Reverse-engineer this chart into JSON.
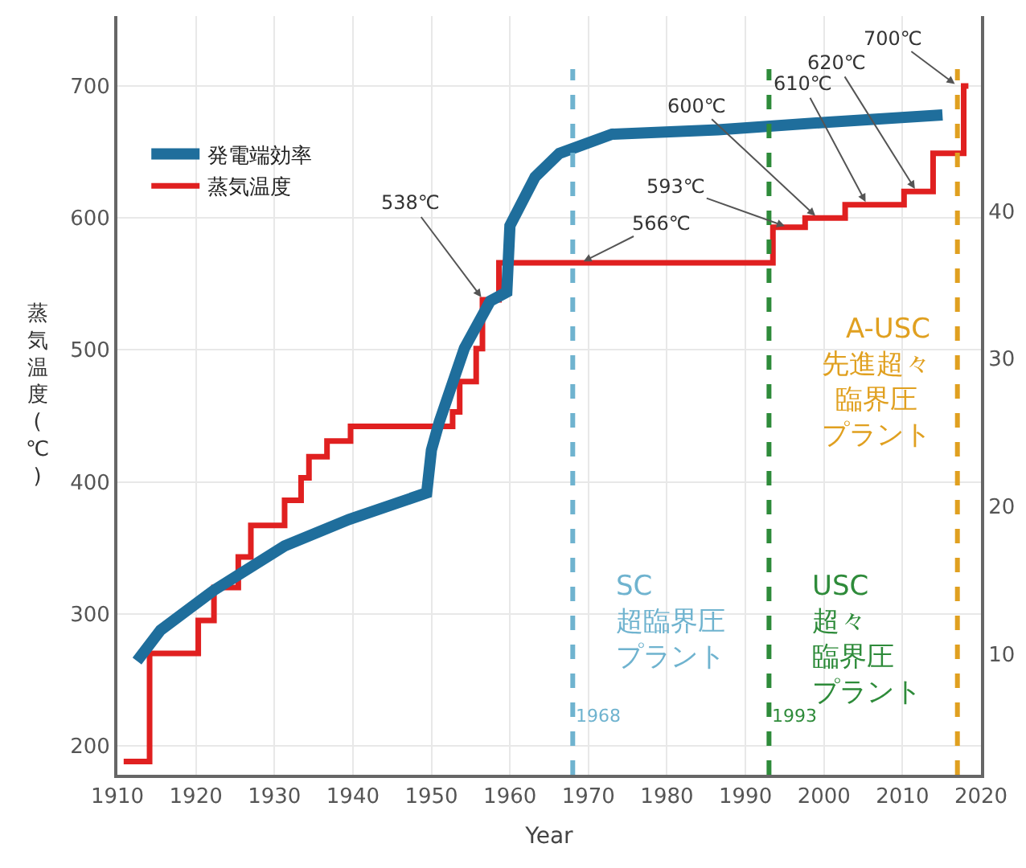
{
  "chart_data": {
    "type": "line",
    "xlabel": "Year",
    "ylabel": "蒸気温度(℃)",
    "xlim": [
      1910,
      2020
    ],
    "xticks": [
      1910,
      1920,
      1930,
      1940,
      1950,
      1960,
      1970,
      1980,
      1990,
      2000,
      2010,
      2020
    ],
    "ylim": [
      178,
      753
    ],
    "yticks": [
      200,
      300,
      400,
      500,
      600,
      700
    ],
    "y2lim": [
      1.8,
      53.2
    ],
    "y2ticks": [
      10,
      20,
      30,
      40
    ],
    "grid": true,
    "legend": "top left",
    "series": [
      {
        "name": "発電端効率",
        "axis": "y2",
        "color": "#1f6e9c",
        "x": [
          1912.5,
          1915.5,
          1922.3,
          1931.3,
          1939.5,
          1949.4,
          1950,
          1951,
          1954.2,
          1957.5,
          1959.6,
          1960,
          1963.2,
          1966.3,
          1973,
          1986.5,
          2000.2,
          2015.1
        ],
        "values": [
          9.5,
          11.6,
          14.3,
          17.3,
          19.1,
          20.9,
          23.8,
          25.7,
          30.7,
          33.9,
          34.5,
          39.0,
          42.3,
          43.9,
          45.2,
          45.5,
          46.0,
          46.5
        ]
      },
      {
        "name": "蒸気温度",
        "type": "step",
        "color": "#e02020",
        "x": [
          1910.8,
          1914.1,
          1920.3,
          1922.3,
          1925.4,
          1927,
          1931.3,
          1933.4,
          1934.4,
          1936.7,
          1939.7,
          1952.7,
          1953.6,
          1955.7,
          1956.5,
          1958.6,
          1993.5,
          1997.6,
          2002.7,
          2010.2,
          2013.9,
          2017.8,
          2018.4
        ],
        "values": [
          188,
          270,
          295,
          320,
          343,
          367,
          386,
          403,
          419,
          431,
          442,
          453,
          476,
          501,
          538,
          566,
          593,
          600,
          610,
          620,
          649,
          700,
          700
        ]
      }
    ],
    "ref_lines": [
      {
        "axis": "x",
        "value": 1968,
        "label": "1968",
        "color": "#6fb3cf",
        "line_style": "dashed"
      },
      {
        "axis": "x",
        "value": 1993,
        "label": "1993",
        "color": "#2e8b3a",
        "line_style": "dashed"
      },
      {
        "axis": "x",
        "value": 2017,
        "color": "#e0a020",
        "line_style": "dashed"
      }
    ],
    "annotations": [
      {
        "text": "538℃",
        "x": 1956.6,
        "y": 538
      },
      {
        "text": "566℃",
        "x": 1969,
        "y": 566
      },
      {
        "text": "593℃",
        "x": 1995.4,
        "y": 593
      },
      {
        "text": "600℃",
        "x": 1999.2,
        "y": 600
      },
      {
        "text": "610℃",
        "x": 2005.5,
        "y": 610
      },
      {
        "text": "620℃",
        "x": 2011.8,
        "y": 620
      },
      {
        "text": "700℃",
        "x": 2017,
        "y": 700
      },
      "SC",
      "超臨界圧プラント",
      "USC",
      "超々臨界圧プラント",
      "A-USC",
      "先進超々臨界圧プラント"
    ]
  }
}
